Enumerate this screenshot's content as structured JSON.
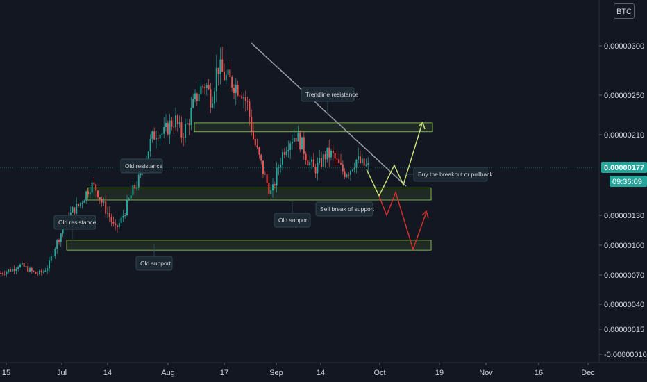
{
  "currency_label": "BTC",
  "colors": {
    "background": "#131722",
    "up": "#26a69a",
    "down": "#ef5350",
    "zone": "#7cb342",
    "trendline": "#9598a1",
    "bullish_path": "#c5e07a",
    "bearish_path": "#d32f2f",
    "price_tag": "#26a69a"
  },
  "chart_data": {
    "type": "candlestick",
    "symbol_quote": "BTC",
    "y_ticks": [
      "0.00000300",
      "0.00000250",
      "0.00000210",
      "0.00000177",
      "0.00000130",
      "0.00000100",
      "0.00000070",
      "0.00000040",
      "0.00000015",
      "-0.00000010"
    ],
    "x_ticks": [
      "15",
      "Jul",
      "14",
      "Aug",
      "17",
      "Sep",
      "14",
      "Oct",
      "19",
      "Nov",
      "16",
      "Dec"
    ],
    "ylim": [
      -1.2e-07,
      3.3e-06
    ],
    "current_price": "0.00000177",
    "countdown": "09:36:09",
    "price_path": [
      7.2e-07,
      7.4e-07,
      7.6e-07,
      8e-07,
      7.8e-07,
      7.4e-07,
      7.1e-07,
      7.3e-07,
      8e-07,
      9.8e-07,
      1.12e-06,
      1.25e-06,
      1.35e-06,
      1.4e-06,
      1.5e-06,
      1.6e-06,
      1.55e-06,
      1.4e-06,
      1.3e-06,
      1.15e-06,
      1.25e-06,
      1.4e-06,
      1.55e-06,
      1.65e-06,
      1.85e-06,
      2.05e-06,
      2.15e-06,
      2.1e-06,
      2.2e-06,
      2.25e-06,
      2.1e-06,
      2.2e-06,
      2.4e-06,
      2.55e-06,
      2.62e-06,
      2.45e-06,
      2.8e-06,
      2.7e-06,
      2.65e-06,
      2.6e-06,
      2.55e-06,
      2.4e-06,
      2.05e-06,
      1.85e-06,
      1.65e-06,
      1.5e-06,
      1.75e-06,
      1.95e-06,
      2.05e-06,
      2.1e-06,
      2e-06,
      1.85e-06,
      1.75e-06,
      1.8e-06,
      1.9e-06,
      1.9e-06,
      1.8e-06,
      1.72e-06,
      1.75e-06,
      1.85e-06,
      1.8e-06,
      1.77e-06
    ],
    "zones": [
      {
        "name": "upper resistance zone",
        "from": 2.13e-06,
        "to": 2.22e-06
      },
      {
        "name": "middle support zone",
        "from": 1.45e-06,
        "to": 1.57e-06
      },
      {
        "name": "lower support zone",
        "from": 9.5e-07,
        "to": 1.05e-06
      }
    ],
    "annotations": {
      "trendline_resistance": "Trendline resistance",
      "old_resistance_upper": "Old resistance",
      "old_resistance_lower": "Old  resistance",
      "old_support_lower": "Old support",
      "old_support_middle": "Old support",
      "buy_note": "Buy the breakout or pullback",
      "sell_note": "Sell break of support"
    }
  }
}
